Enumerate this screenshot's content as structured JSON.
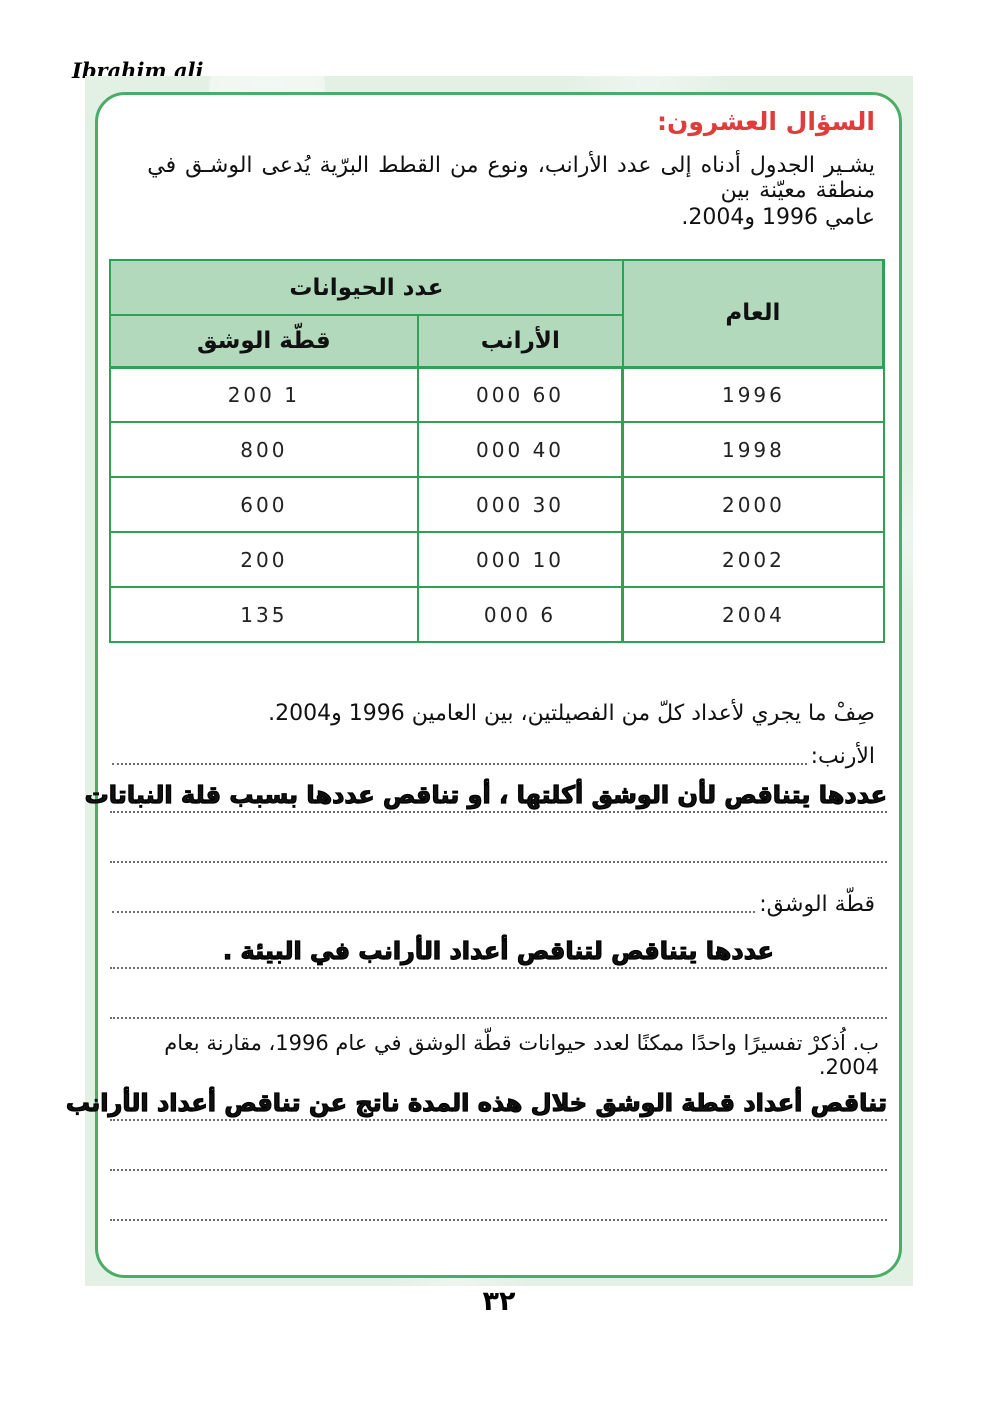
{
  "page": {
    "author": "Ibrahim ali",
    "page_number": "٣٢"
  },
  "colors": {
    "card_border": "#4aad66",
    "table_border": "#2ea155",
    "table_header_bg": "#b3d9bd",
    "band_bg": "#e3f1e5",
    "title_red": "#e23b3b",
    "dotted_line": "#6f6f6f"
  },
  "question": {
    "title": "السؤال العشرون:",
    "intro_line1": "يشـير الجدول أدناه إلى عدد الأرانب، ونوع من القطط البرّية يُدعى الوشـق في منطقة معيّنة بين",
    "intro_line2": "عامي 1996 و2004."
  },
  "table": {
    "header_group": "عدد الحيوانات",
    "col_year": "العام",
    "col_rabbits": "الأرانب",
    "col_lynx": "قطّة الوشق",
    "rows": [
      {
        "year": "1996",
        "rabbits": "60 000",
        "lynx": "1 200"
      },
      {
        "year": "1998",
        "rabbits": "40 000",
        "lynx": "800"
      },
      {
        "year": "2000",
        "rabbits": "30 000",
        "lynx": "600"
      },
      {
        "year": "2002",
        "rabbits": "10 000",
        "lynx": "200"
      },
      {
        "year": "2004",
        "rabbits": "6 000",
        "lynx": "135"
      }
    ]
  },
  "part_a": {
    "prompt": "صِفْ ما يجري لأعداد كلّ من الفصيلتين، بين العامين 1996 و2004.",
    "rabbit_label": "الأرنب:",
    "rabbit_answer": "عددها يتناقص لأن الوشق أكلتها ، أو تناقص عددها بسبب قلة النباتات",
    "lynx_label": "قطّة الوشق:",
    "lynx_answer": "عددها يتناقص لتناقص أعداد الأرانب في البيئة ."
  },
  "part_b": {
    "prompt": "ب. اُذكرْ تفسيرًا واحدًا ممكنًا لعدد حيوانات قطّة الوشق في عام 1996، مقارنة بعام 2004.",
    "answer": "تناقص أعداد قطة الوشق خلال هذه المدة ناتج عن تناقص أعداد الأرانب"
  }
}
